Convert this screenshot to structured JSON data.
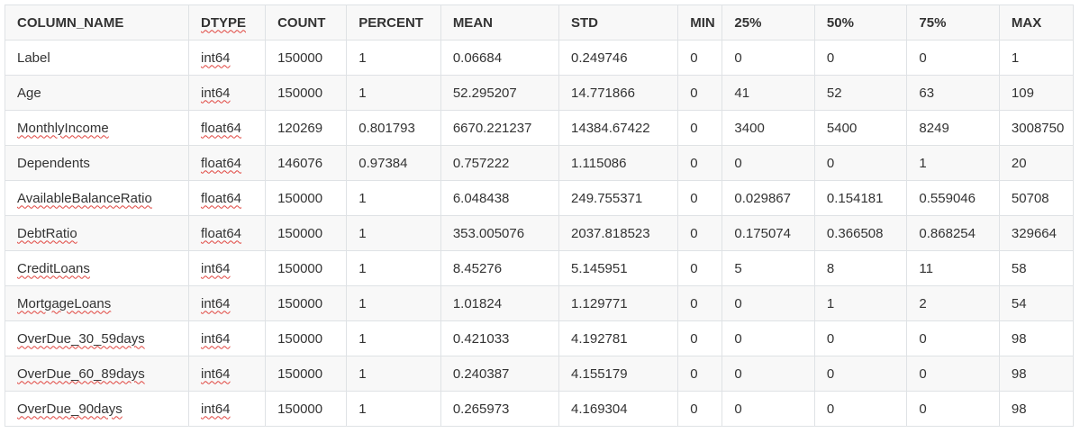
{
  "columns": [
    "COLUMN_NAME",
    "DTYPE",
    "COUNT",
    "PERCENT",
    "MEAN",
    "STD",
    "MIN",
    "25%",
    "50%",
    "75%",
    "MAX"
  ],
  "rows": [
    [
      "Label",
      "int64",
      "150000",
      "1",
      "0.06684",
      "0.249746",
      "0",
      "0",
      "0",
      "0",
      "1"
    ],
    [
      "Age",
      "int64",
      "150000",
      "1",
      "52.295207",
      "14.771866",
      "0",
      "41",
      "52",
      "63",
      "109"
    ],
    [
      "MonthlyIncome",
      "float64",
      "120269",
      "0.801793",
      "6670.221237",
      "14384.67422",
      "0",
      "3400",
      "5400",
      "8249",
      "3008750"
    ],
    [
      "Dependents",
      "float64",
      "146076",
      "0.97384",
      "0.757222",
      "1.115086",
      "0",
      "0",
      "0",
      "1",
      "20"
    ],
    [
      "AvailableBalanceRatio",
      "float64",
      "150000",
      "1",
      "6.048438",
      "249.755371",
      "0",
      "0.029867",
      "0.154181",
      "0.559046",
      "50708"
    ],
    [
      "DebtRatio",
      "float64",
      "150000",
      "1",
      "353.005076",
      "2037.818523",
      "0",
      "0.175074",
      "0.366508",
      "0.868254",
      "329664"
    ],
    [
      "CreditLoans",
      "int64",
      "150000",
      "1",
      "8.45276",
      "5.145951",
      "0",
      "5",
      "8",
      "11",
      "58"
    ],
    [
      "MortgageLoans",
      "int64",
      "150000",
      "1",
      "1.01824",
      "1.129771",
      "0",
      "0",
      "1",
      "2",
      "54"
    ],
    [
      "OverDue_30_59days",
      "int64",
      "150000",
      "1",
      "0.421033",
      "4.192781",
      "0",
      "0",
      "0",
      "0",
      "98"
    ],
    [
      "OverDue_60_89days",
      "int64",
      "150000",
      "1",
      "0.240387",
      "4.155179",
      "0",
      "0",
      "0",
      "0",
      "98"
    ],
    [
      "OverDue_90days",
      "int64",
      "150000",
      "1",
      "0.265973",
      "4.169304",
      "0",
      "0",
      "0",
      "0",
      "98"
    ]
  ],
  "spellcheck_flagged_columns": [
    0,
    1
  ],
  "spellcheck_unflagged_values": [
    "Label",
    "Age",
    "Dependents"
  ],
  "colors": {
    "header_bg": "#f8f8f8",
    "alt_row_bg": "#f8f8f8",
    "border": "#dfe2e5",
    "text": "#333333",
    "spellcheck_underline": "#e0443e"
  }
}
